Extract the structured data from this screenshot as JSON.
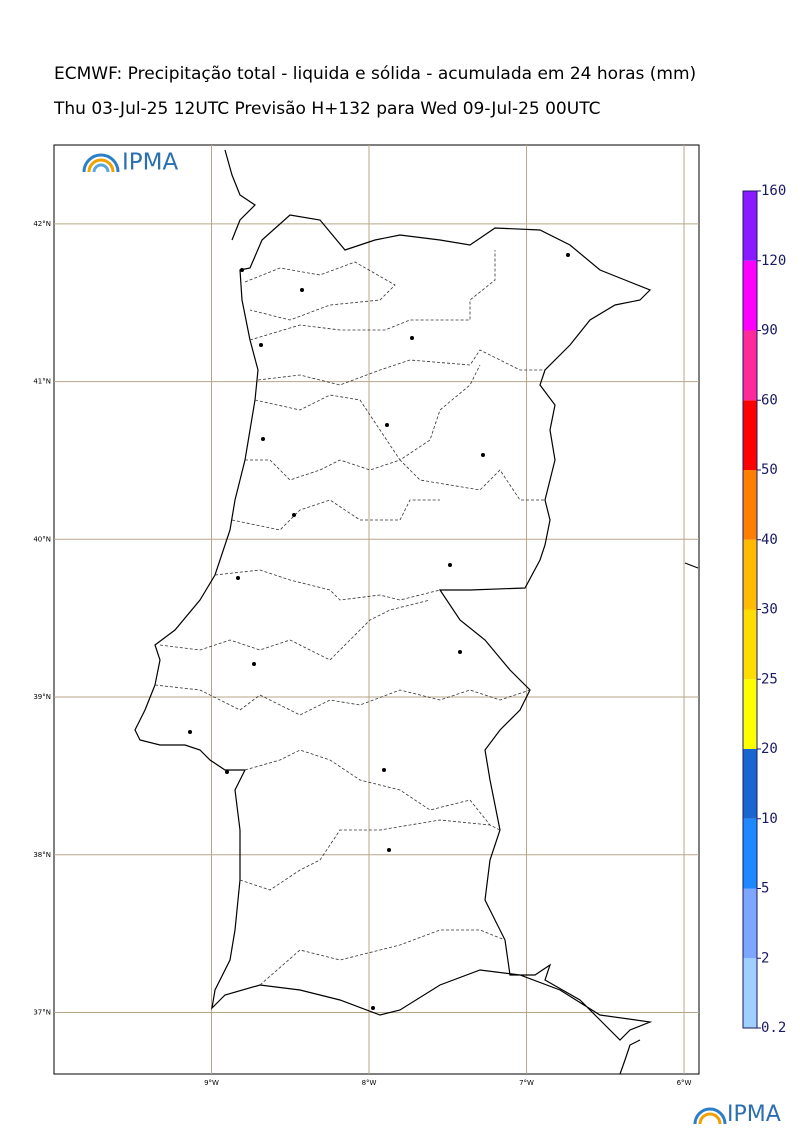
{
  "title": "ECMWF: Precipitação total - liquida e sólida - acumulada em 24 horas (mm)",
  "subtitle": "Thu 03-Jul-25 12UTC Previsão H+132 para Wed 09-Jul-25 00UTC",
  "logo": "IPMA",
  "footer_logo": "IPMA",
  "map": {
    "xlim": [
      -10,
      -5.905
    ],
    "ylim": [
      36.61,
      42.5
    ],
    "xticks": [
      {
        "value": -9,
        "label": "9°W"
      },
      {
        "value": -8,
        "label": "8°W"
      },
      {
        "value": -7,
        "label": "7°W"
      },
      {
        "value": -6,
        "label": "6°W"
      }
    ],
    "yticks": [
      {
        "value": 42,
        "label": "42°N"
      },
      {
        "value": 41,
        "label": "41°N"
      },
      {
        "value": 40,
        "label": "40°N"
      },
      {
        "value": 39,
        "label": "39°N"
      },
      {
        "value": 38,
        "label": "38°N"
      },
      {
        "value": 37,
        "label": "37°N"
      }
    ]
  },
  "colorbar": {
    "levels": [
      0.2,
      2,
      5,
      10,
      20,
      25,
      30,
      40,
      50,
      60,
      90,
      120,
      160
    ],
    "colors": [
      "#9fd0ff",
      "#7ea6ff",
      "#1e88ff",
      "#1a66d0",
      "#ffff00",
      "#ffdd00",
      "#ffbb00",
      "#ff8000",
      "#ff0000",
      "#ff2a9a",
      "#ff00ff",
      "#8a1aff"
    ]
  }
}
